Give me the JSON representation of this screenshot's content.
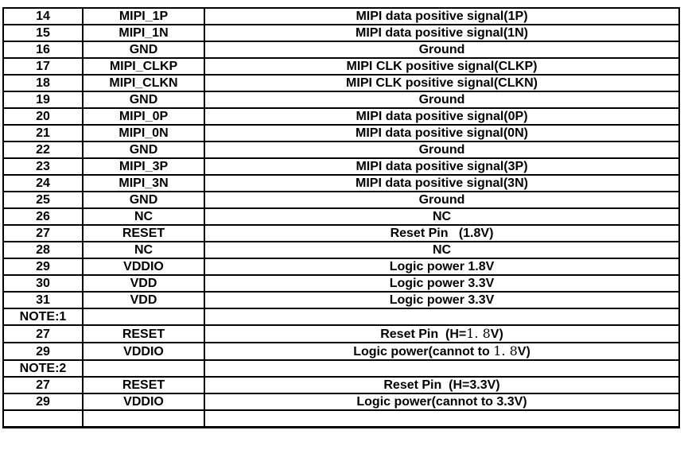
{
  "table": {
    "column_semantics": [
      "pin_number",
      "signal_name",
      "description"
    ],
    "rows": [
      {
        "pin": "14",
        "signal": "MIPI_1P",
        "desc": "MIPI data positive signal(1P)"
      },
      {
        "pin": "15",
        "signal": "MIPI_1N",
        "desc": "MIPI data positive signal(1N)"
      },
      {
        "pin": "16",
        "signal": "GND",
        "desc": "Ground"
      },
      {
        "pin": "17",
        "signal": "MIPI_CLKP",
        "desc": "MIPI CLK positive signal(CLKP)"
      },
      {
        "pin": "18",
        "signal": "MIPI_CLKN",
        "desc": "MIPI CLK positive signal(CLKN)"
      },
      {
        "pin": "19",
        "signal": "GND",
        "desc": "Ground"
      },
      {
        "pin": "20",
        "signal": "MIPI_0P",
        "desc": "MIPI data positive signal(0P)"
      },
      {
        "pin": "21",
        "signal": "MIPI_0N",
        "desc": "MIPI data positive signal(0N)"
      },
      {
        "pin": "22",
        "signal": "GND",
        "desc": "Ground"
      },
      {
        "pin": "23",
        "signal": "MIPI_3P",
        "desc": "MIPI data positive signal(3P)"
      },
      {
        "pin": "24",
        "signal": "MIPI_3N",
        "desc": "MIPI data positive signal(3N)"
      },
      {
        "pin": "25",
        "signal": "GND",
        "desc": "Ground"
      },
      {
        "pin": "26",
        "signal": "NC",
        "desc": "NC"
      },
      {
        "pin": "27",
        "signal": "RESET",
        "desc": "Reset Pin   (1.8V)"
      },
      {
        "pin": "28",
        "signal": "NC",
        "desc": "NC"
      },
      {
        "pin": "29",
        "signal": "VDDIO",
        "desc": "Logic power 1.8V"
      },
      {
        "pin": "30",
        "signal": "VDD",
        "desc": "Logic power 3.3V"
      },
      {
        "pin": "31",
        "signal": "VDD",
        "desc": "Logic power 3.3V"
      },
      {
        "pin": "NOTE:1",
        "signal": "",
        "desc": "",
        "is_note": true
      },
      {
        "pin": "27",
        "signal": "RESET",
        "desc": "Reset Pin  (H=1. 8V)",
        "desc_parts": [
          {
            "t": "Reset Pin  (H="
          },
          {
            "t": "1. 8",
            "cjk": true
          },
          {
            "t": "V)"
          }
        ]
      },
      {
        "pin": "29",
        "signal": "VDDIO",
        "desc": "Logic power(cannot to 1. 8V)",
        "desc_parts": [
          {
            "t": "Logic power(cannot to "
          },
          {
            "t": "1. 8",
            "cjk": true
          },
          {
            "t": "V)"
          }
        ]
      },
      {
        "pin": "NOTE:2",
        "signal": "",
        "desc": "",
        "is_note": true
      },
      {
        "pin": "27",
        "signal": "RESET",
        "desc": "Reset Pin  (H=3.3V)"
      },
      {
        "pin": "29",
        "signal": "VDDIO",
        "desc": "Logic power(cannot to 3.3V)"
      },
      {
        "pin": "",
        "signal": "",
        "desc": ""
      }
    ],
    "colors": {
      "border": "#000000",
      "text": "#000000",
      "background": "#ffffff"
    }
  }
}
